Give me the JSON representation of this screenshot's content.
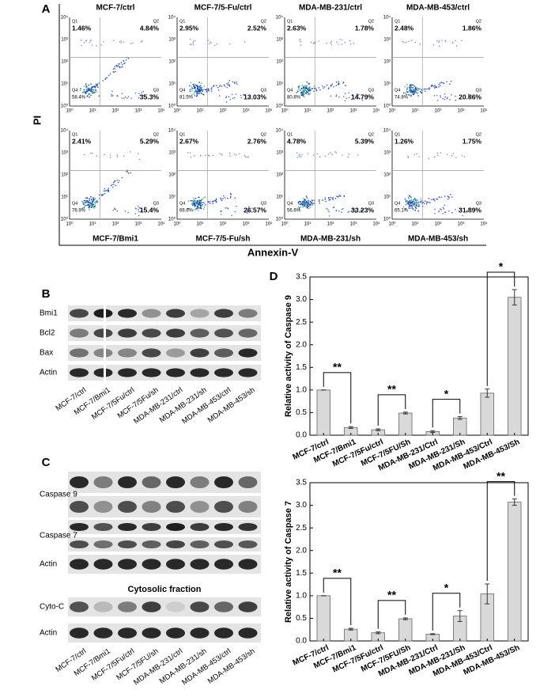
{
  "panel_labels": [
    "A",
    "B",
    "C",
    "D"
  ],
  "flow": {
    "y_label": "PI",
    "x_label": "Annexin-V",
    "axis_ticks": [
      "10⁰",
      "10¹",
      "10²",
      "10³",
      "10⁴"
    ],
    "quadrant_names": [
      "Q1",
      "Q2",
      "Q3",
      "Q4"
    ],
    "plots": [
      {
        "title": "MCF-7/ctrl",
        "q1": "1.46%",
        "q2": "4.84%",
        "q3": "35.3%",
        "q4": "58.4%"
      },
      {
        "title": "MCF-7/5-Fu/ctrl",
        "q1": "2.95%",
        "q2": "2.52%",
        "q3": "13.03%",
        "q4": "81.5%"
      },
      {
        "title": "MDA-MB-231/ctrl",
        "q1": "2.63%",
        "q2": "1.78%",
        "q3": "14.79%",
        "q4": "80.8%"
      },
      {
        "title": "MDA-MB-453/ctrl",
        "q1": "2.48%",
        "q2": "1.86%",
        "q3": "20.86%",
        "q4": "74.8%"
      },
      {
        "title": "MCF-7/Bmi1",
        "q1": "2.41%",
        "q2": "5.29%",
        "q3": "15.4%",
        "q4": "76.9%"
      },
      {
        "title": "MCF-7/5-Fu/sh",
        "q1": "2.67%",
        "q2": "2.76%",
        "q3": "26.57%",
        "q4": "66.6%"
      },
      {
        "title": "MDA-MB-231/sh",
        "q1": "4.78%",
        "q2": "5.39%",
        "q3": "33.23%",
        "q4": "56.6%"
      },
      {
        "title": "MDA-MB-453/sh",
        "q1": "1.26%",
        "q2": "1.75%",
        "q3": "31.89%",
        "q4": "65.1%"
      }
    ]
  },
  "blot_b": {
    "rows": [
      "Bmi1",
      "Bcl2",
      "Bax",
      "Actin"
    ],
    "lanes": [
      "MCF-7/ctrl",
      "MCF-7/Bmi1",
      "MCF-7/5Fu/ctrl",
      "MCF-7/5Fu/sh",
      "MDA-MB-231/ctrl",
      "MDA-MB-231/sh",
      "MDA-MB-453/ctrl",
      "MDA-MB-453/sh"
    ]
  },
  "blot_c": {
    "rows": [
      "Caspase 9",
      "Caspase 7",
      "Actin"
    ],
    "fraction_title": "Cytosolic fraction",
    "fraction_rows": [
      "Cyto-C",
      "Actin"
    ],
    "lanes": [
      "MCF-7/ctrl",
      "MCF-7/Bmi1",
      "MCF-7/5Fu/ctrl",
      "MCF-7/5FU/sh",
      "MDA-MB-231/ctrl",
      "MDA-MB-231/sh",
      "MDA-MB-453/ctrl",
      "MDA-MB-453/sh"
    ]
  },
  "chart_data": [
    {
      "type": "bar",
      "y_label": "Relative activity of Caspase 9",
      "categories": [
        "MCF-7/ctrl",
        "MCF-7/Bmi1",
        "MCF-7/5Fu/ctrl",
        "MCF-7/5FU/Sh",
        "MDA-MB-231/Ctrl",
        "MDA-MB-231/Sh",
        "MDA-MB-453/Ctrl",
        "MDA-MB-453/Sh"
      ],
      "values": [
        1.0,
        0.17,
        0.12,
        0.49,
        0.08,
        0.38,
        0.93,
        3.05
      ],
      "errors": [
        0,
        0.02,
        0.02,
        0.02,
        0.02,
        0.03,
        0.09,
        0.17
      ],
      "significance": [
        "**",
        "**",
        "*",
        "*"
      ],
      "color": "#d9d9d9",
      "ylim": [
        0,
        3.5
      ],
      "yticks": [
        {
          "value": 0,
          "label": "0.0"
        },
        0.5,
        {
          "value": 1,
          "label": "1.0"
        },
        1.5,
        {
          "value": 2,
          "label": "2.0"
        },
        2.5,
        {
          "value": 3,
          "label": "3.0"
        },
        3.5
      ]
    },
    {
      "type": "bar",
      "y_label": "Relative activity of Caspase 7",
      "categories": [
        "MCF-7/ctrl",
        "MCF-7/Bmi1",
        "MCF-7/5Fu/ctrl",
        "MCF-7/5FU/Sh",
        "MDA-MB-231/Ctrl",
        "MDA-MB-231/Sh",
        "MDA-MB-453/Ctrl",
        "MDA-MB-453/Sh"
      ],
      "values": [
        1.0,
        0.26,
        0.18,
        0.49,
        0.15,
        0.55,
        1.04,
        3.07
      ],
      "errors": [
        0,
        0.02,
        0.02,
        0.02,
        0.01,
        0.12,
        0.22,
        0.07
      ],
      "significance": [
        "**",
        "**",
        "*",
        "**"
      ],
      "color": "#d9d9d9",
      "ylim": [
        0,
        3.5
      ],
      "yticks": [
        {
          "value": 0,
          "label": "0.0"
        },
        0.5,
        {
          "value": 1,
          "label": "1.0"
        },
        1.5,
        {
          "value": 2,
          "label": "2.0"
        },
        2.5,
        {
          "value": 3,
          "label": "3.0"
        },
        3.5
      ]
    }
  ]
}
